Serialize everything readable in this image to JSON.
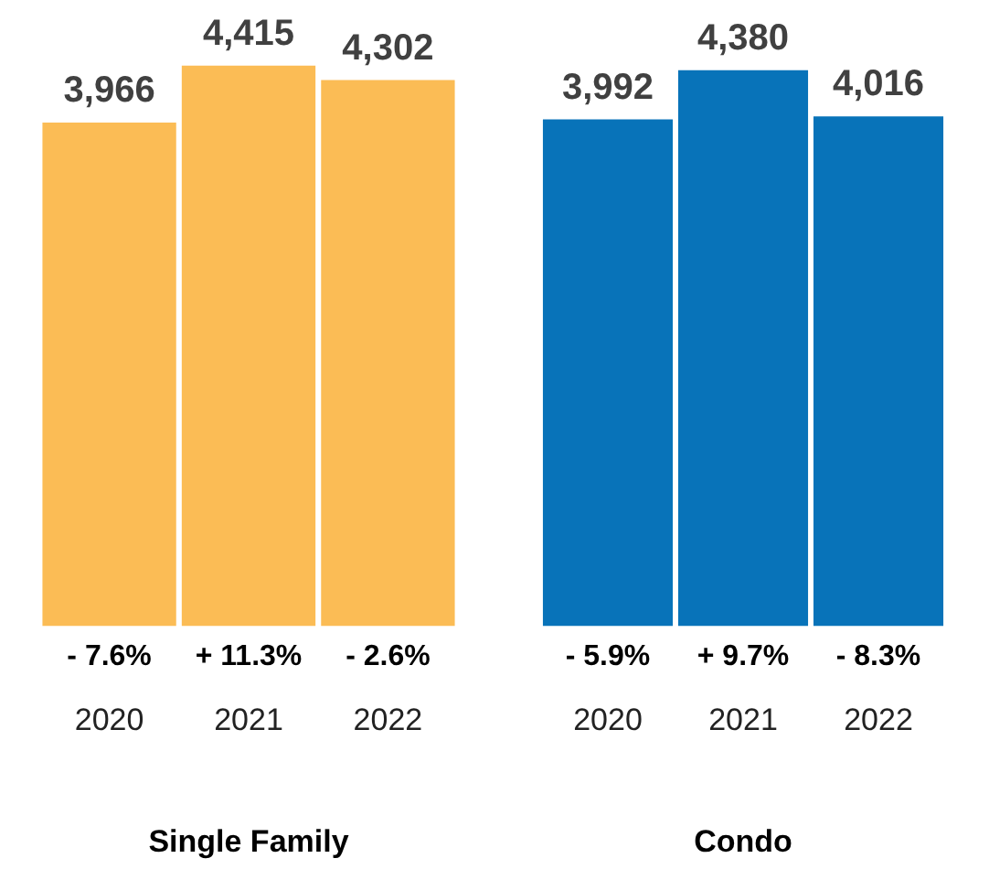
{
  "chart_data": [
    {
      "type": "bar",
      "xlabel": "Single Family",
      "categories": [
        "2020",
        "2021",
        "2022"
      ],
      "values": [
        3966,
        4415,
        4302
      ],
      "color": "#fbbc55",
      "data_labels": true,
      "value_labels": [
        "3,966",
        "4,415",
        "4,302"
      ],
      "annotations": [
        "- 7.6%",
        "+ 11.3%",
        "- 2.6%"
      ]
    },
    {
      "type": "bar",
      "xlabel": "Condo",
      "categories": [
        "2020",
        "2021",
        "2022"
      ],
      "values": [
        3992,
        4380,
        4016
      ],
      "color": "#0873b9",
      "data_labels": true,
      "value_labels": [
        "3,992",
        "4,380",
        "4,016"
      ],
      "annotations": [
        "- 5.9%",
        "+ 9.7%",
        "- 8.3%"
      ]
    }
  ]
}
